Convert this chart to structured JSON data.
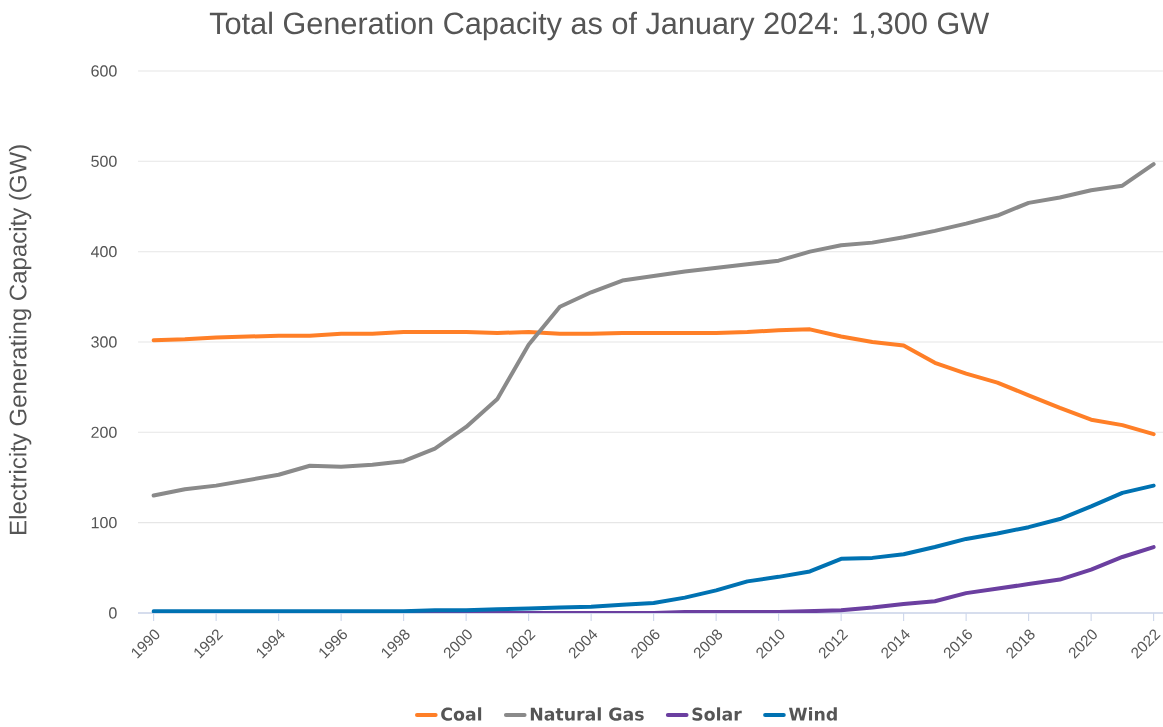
{
  "chart_data": {
    "type": "line",
    "title": "Total Generation Capacity as of January 2024: 1,300 GW",
    "ylabel": "Electricity Generating Capacity (GW)",
    "x": [
      1990,
      1991,
      1992,
      1993,
      1994,
      1995,
      1996,
      1997,
      1998,
      1999,
      2000,
      2001,
      2002,
      2003,
      2004,
      2005,
      2006,
      2007,
      2008,
      2009,
      2010,
      2011,
      2012,
      2013,
      2014,
      2015,
      2016,
      2017,
      2018,
      2019,
      2020,
      2021,
      2022
    ],
    "series": [
      {
        "name": "Coal",
        "color": "#ff7f27",
        "values": [
          302,
          303,
          305,
          306,
          307,
          307,
          309,
          309,
          311,
          311,
          311,
          310,
          311,
          309,
          309,
          310,
          310,
          310,
          310,
          311,
          313,
          314,
          306,
          300,
          296,
          277,
          265,
          255,
          241,
          227,
          214,
          208,
          198
        ]
      },
      {
        "name": "Natural Gas",
        "color": "#8a8a8a",
        "values": [
          130,
          137,
          141,
          147,
          153,
          163,
          162,
          164,
          168,
          182,
          206,
          237,
          297,
          339,
          355,
          368,
          373,
          378,
          382,
          386,
          390,
          400,
          407,
          410,
          416,
          423,
          431,
          440,
          454,
          460,
          468,
          473,
          497
        ]
      },
      {
        "name": "Solar",
        "color": "#6b3fa0",
        "values": [
          null,
          null,
          null,
          null,
          null,
          null,
          null,
          null,
          0,
          0,
          0,
          0,
          0,
          0,
          0,
          0,
          0,
          1,
          1,
          1,
          1,
          2,
          3,
          6,
          10,
          13,
          22,
          27,
          32,
          37,
          48,
          62,
          73
        ]
      },
      {
        "name": "Wind",
        "color": "#0072b2",
        "values": [
          2,
          2,
          2,
          2,
          2,
          2,
          2,
          2,
          2,
          3,
          3,
          4,
          5,
          6,
          7,
          9,
          11,
          17,
          25,
          35,
          40,
          46,
          60,
          61,
          65,
          73,
          82,
          88,
          95,
          104,
          118,
          133,
          141
        ]
      }
    ],
    "xlim": [
      1989.5,
      2022.3
    ],
    "xticks": [
      1990,
      1992,
      1994,
      1996,
      1998,
      2000,
      2002,
      2004,
      2006,
      2008,
      2010,
      2012,
      2014,
      2016,
      2018,
      2020,
      2022
    ],
    "ylim": [
      0,
      600
    ],
    "yticks": [
      0,
      100,
      200,
      300,
      400,
      500,
      600
    ],
    "grid": "y",
    "legend": "bottom",
    "marker": "none",
    "line_style": "solid"
  }
}
